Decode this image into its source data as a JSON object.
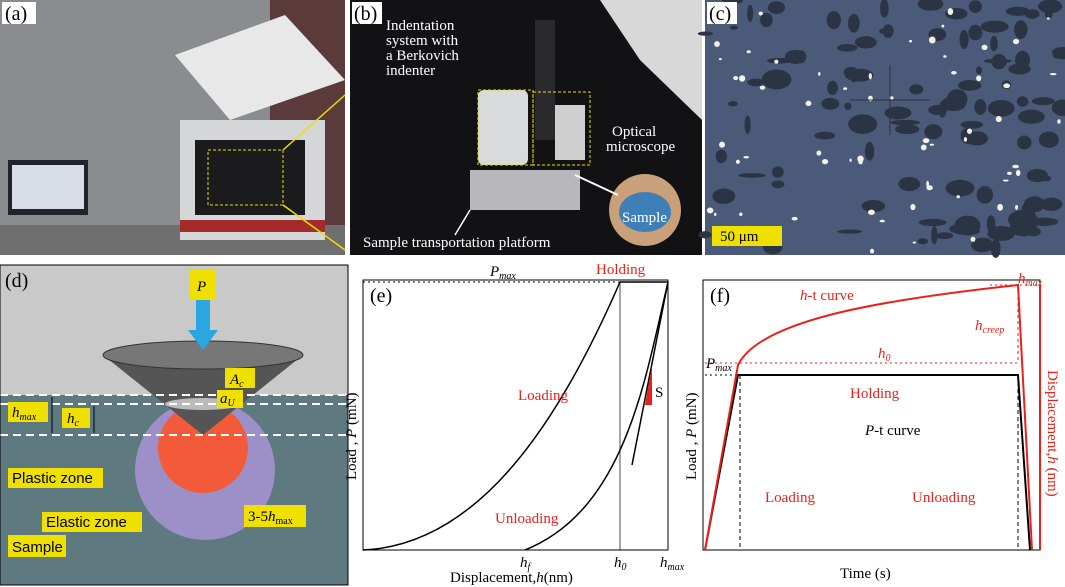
{
  "panels": {
    "a": {
      "label": "(a)"
    },
    "b": {
      "label": "(b)",
      "indenter": [
        "Indentation",
        "system with",
        "a Berkovich",
        "indenter"
      ],
      "microscope": [
        "Optical",
        "microscope"
      ],
      "sample": "Sample",
      "platform": "Sample transportation platform"
    },
    "c": {
      "label": "(c)",
      "scale": "50 μm"
    },
    "d": {
      "label": "(d)",
      "force": "P",
      "area": {
        "main": "A",
        "sub": "c"
      },
      "radius": {
        "main": "a",
        "sub": "U"
      },
      "hmax": {
        "main": "h",
        "sub": "max"
      },
      "hc": {
        "main": "h",
        "sub": "c"
      },
      "plastic": "Plastic zone",
      "elastic": "Elastic zone",
      "range": {
        "main": "3-5",
        "var": "h",
        "sub": "max"
      },
      "sample": "Sample"
    },
    "e": {
      "label": "(e)",
      "pmax": {
        "main": "P",
        "sub": "max"
      },
      "holding": "Holding",
      "loading": "Loading",
      "unloading": "Unloading",
      "stiffness": "S",
      "ylabel": {
        "pre": "Load , ",
        "var": "P",
        "post": " (mN)"
      },
      "xlabel": {
        "pre": "Displacement,",
        "var": "h",
        "post": "(nm)"
      },
      "hf": {
        "main": "h",
        "sub": "f"
      },
      "h0": {
        "main": "h",
        "sub": "0"
      },
      "hmax": {
        "main": "h",
        "sub": "max"
      }
    },
    "f": {
      "label": "(f)",
      "htcurve": {
        "var": "h",
        "post": "-t curve"
      },
      "hmax": {
        "main": "h",
        "sub": "max"
      },
      "hcreep": {
        "main": "h",
        "sub": "creep"
      },
      "h0": {
        "main": "h",
        "sub": "0"
      },
      "pmax": {
        "main": "P",
        "sub": "max"
      },
      "holding": "Holding",
      "ptcurve": {
        "var": "P",
        "post": "-t curve"
      },
      "loading": "Loading",
      "unloading": "Unloading",
      "ylabel": {
        "pre": "Load , ",
        "var": "P",
        "post": " (mN)"
      },
      "y2label": {
        "pre": "Displacement,",
        "var": "h",
        "post": " (nm)"
      },
      "xlabel": "Time (s)"
    }
  }
}
